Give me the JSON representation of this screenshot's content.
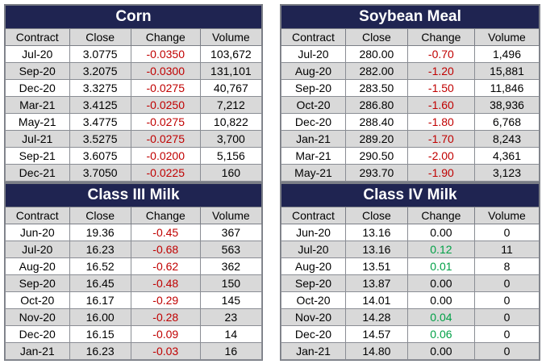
{
  "tables": [
    {
      "id": "corn",
      "title": "Corn",
      "headers": [
        "Contract",
        "Close",
        "Change",
        "Volume"
      ],
      "rows": [
        [
          "Jul-20",
          "3.0775",
          "-0.0350",
          "103,672"
        ],
        [
          "Sep-20",
          "3.2075",
          "-0.0300",
          "131,101"
        ],
        [
          "Dec-20",
          "3.3275",
          "-0.0275",
          "40,767"
        ],
        [
          "Mar-21",
          "3.4125",
          "-0.0250",
          "7,212"
        ],
        [
          "May-21",
          "3.4775",
          "-0.0275",
          "10,822"
        ],
        [
          "Jul-21",
          "3.5275",
          "-0.0275",
          "3,700"
        ],
        [
          "Sep-21",
          "3.6075",
          "-0.0200",
          "5,156"
        ],
        [
          "Dec-21",
          "3.7050",
          "-0.0225",
          "160"
        ]
      ]
    },
    {
      "id": "soybean-meal",
      "title": "Soybean Meal",
      "headers": [
        "Contract",
        "Close",
        "Change",
        "Volume"
      ],
      "rows": [
        [
          "Jul-20",
          "280.00",
          "-0.70",
          "1,496"
        ],
        [
          "Aug-20",
          "282.00",
          "-1.20",
          "15,881"
        ],
        [
          "Sep-20",
          "283.50",
          "-1.50",
          "11,846"
        ],
        [
          "Oct-20",
          "286.80",
          "-1.60",
          "38,936"
        ],
        [
          "Dec-20",
          "288.40",
          "-1.80",
          "6,768"
        ],
        [
          "Jan-21",
          "289.20",
          "-1.70",
          "8,243"
        ],
        [
          "Mar-21",
          "290.50",
          "-2.00",
          "4,361"
        ],
        [
          "May-21",
          "293.70",
          "-1.90",
          "3,123"
        ]
      ]
    },
    {
      "id": "class-iii-milk",
      "title": "Class III Milk",
      "headers": [
        "Contract",
        "Close",
        "Change",
        "Volume"
      ],
      "rows": [
        [
          "Jun-20",
          "19.36",
          "-0.45",
          "367"
        ],
        [
          "Jul-20",
          "16.23",
          "-0.68",
          "563"
        ],
        [
          "Aug-20",
          "16.52",
          "-0.62",
          "362"
        ],
        [
          "Sep-20",
          "16.45",
          "-0.48",
          "150"
        ],
        [
          "Oct-20",
          "16.17",
          "-0.29",
          "145"
        ],
        [
          "Nov-20",
          "16.00",
          "-0.28",
          "23"
        ],
        [
          "Dec-20",
          "16.15",
          "-0.09",
          "14"
        ],
        [
          "Jan-21",
          "16.23",
          "-0.03",
          "16"
        ]
      ]
    },
    {
      "id": "class-iv-milk",
      "title": "Class IV Milk",
      "headers": [
        "Contract",
        "Close",
        "Change",
        "Volume"
      ],
      "rows": [
        [
          "Jun-20",
          "13.16",
          "0.00",
          "0"
        ],
        [
          "Jul-20",
          "13.16",
          "0.12",
          "11"
        ],
        [
          "Aug-20",
          "13.51",
          "0.01",
          "8"
        ],
        [
          "Sep-20",
          "13.87",
          "0.00",
          "0"
        ],
        [
          "Oct-20",
          "14.01",
          "0.00",
          "0"
        ],
        [
          "Nov-20",
          "14.28",
          "0.04",
          "0"
        ],
        [
          "Dec-20",
          "14.57",
          "0.06",
          "0"
        ],
        [
          "Jan-21",
          "14.80",
          "0.00",
          "0"
        ]
      ]
    }
  ],
  "colors": {
    "title_bg": "#1f2451",
    "title_text": "#ffffff",
    "stripe": "#d9d9d9",
    "negative": "#c00000",
    "positive": "#00a046"
  }
}
